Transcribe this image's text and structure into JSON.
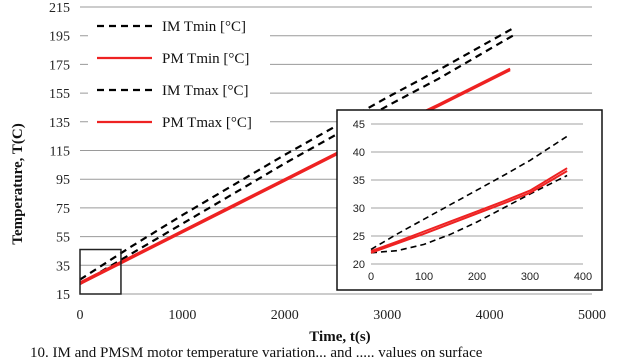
{
  "chart_data": [
    {
      "type": "line",
      "xlabel": "Time, t(s)",
      "ylabel": "Temperature, T(C)",
      "xlim": [
        0,
        5000
      ],
      "ylim": [
        15,
        215
      ],
      "x_ticks": [
        0,
        1000,
        2000,
        3000,
        4000,
        5000
      ],
      "y_ticks": [
        15,
        35,
        55,
        75,
        95,
        115,
        135,
        155,
        175,
        195,
        215
      ],
      "grid": "horizontal",
      "legend_position": "top-left",
      "series": [
        {
          "name": "IM Tmin [°C]",
          "color": "#000000",
          "dash": true,
          "x": [
            0,
            500,
            1000,
            1500,
            2000,
            2500,
            3000,
            3500,
            4250
          ],
          "y": [
            22,
            43,
            64,
            85,
            106,
            126,
            146,
            165,
            196
          ]
        },
        {
          "name": "PM Tmin [°C]",
          "color": "#ee2222",
          "dash": false,
          "x": [
            0,
            500,
            1000,
            1500,
            2000,
            2500,
            3000,
            3500,
            4200
          ],
          "y": [
            22,
            40,
            58,
            76,
            94,
            112,
            129,
            146,
            171
          ]
        },
        {
          "name": "IM Tmax [°C]",
          "color": "#000000",
          "dash": true,
          "x": [
            0,
            500,
            1000,
            1500,
            2000,
            2500,
            3000,
            3500,
            4250
          ],
          "y": [
            25,
            48,
            70,
            91,
            112,
            132,
            152,
            171,
            201
          ]
        },
        {
          "name": "PM Tmax [°C]",
          "color": "#ee2222",
          "dash": false,
          "x": [
            0,
            500,
            1000,
            1500,
            2000,
            2500,
            3000,
            3500,
            4200
          ],
          "y": [
            23,
            41,
            59,
            77,
            95,
            113,
            130,
            147,
            172
          ]
        }
      ],
      "zoom_box": {
        "x": [
          0,
          400
        ],
        "y": [
          15,
          46
        ]
      }
    },
    {
      "type": "line",
      "xlim": [
        0,
        400
      ],
      "ylim": [
        20,
        45
      ],
      "x_ticks": [
        0,
        100,
        200,
        300,
        400
      ],
      "y_ticks": [
        20,
        25,
        30,
        35,
        40,
        45
      ],
      "grid": "horizontal",
      "series": [
        {
          "color": "#000000",
          "dash": true,
          "x": [
            0,
            50,
            100,
            150,
            200,
            250,
            300,
            370
          ],
          "y": [
            22.0,
            22.4,
            23.5,
            25.3,
            27.5,
            30.0,
            32.5,
            35.8
          ]
        },
        {
          "color": "#ee2222",
          "dash": false,
          "x": [
            0,
            50,
            100,
            150,
            200,
            250,
            300,
            370
          ],
          "y": [
            22.0,
            23.7,
            25.4,
            27.2,
            29.0,
            30.8,
            32.7,
            36.6
          ]
        },
        {
          "color": "#ee2222",
          "dash": false,
          "x": [
            0,
            50,
            100,
            150,
            200,
            250,
            300,
            370
          ],
          "y": [
            22.3,
            24.0,
            25.8,
            27.6,
            29.4,
            31.2,
            33.1,
            37.1
          ]
        },
        {
          "color": "#000000",
          "dash": true,
          "x": [
            0,
            50,
            100,
            150,
            200,
            250,
            300,
            370
          ],
          "y": [
            22.6,
            25.4,
            28.0,
            30.6,
            33.2,
            35.8,
            38.5,
            42.8
          ]
        }
      ]
    }
  ],
  "caption": "10.  IM and PMSM motor temperature variation...  and ..... values on surface"
}
